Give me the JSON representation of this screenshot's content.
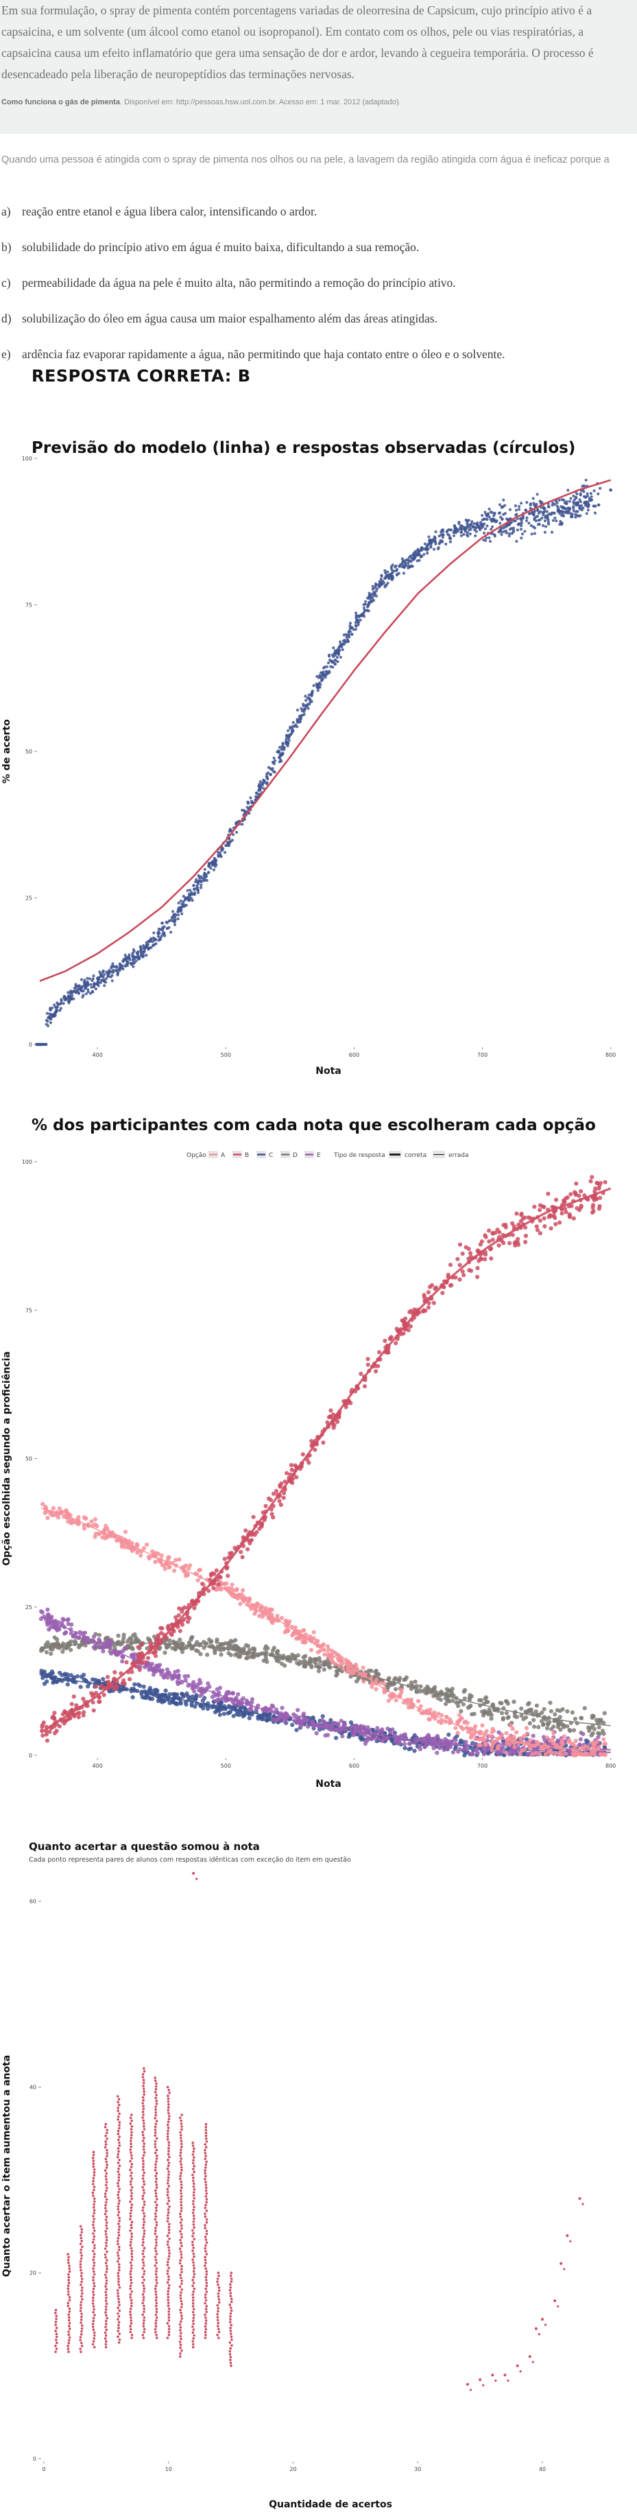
{
  "text": {
    "paragraph": "Em sua formulação, o spray de pimenta contém porcentagens variadas de oleorresina de Capsicum, cujo princípio ativo é a capsaicina, e um solvente (um álcool como etanol ou isopropanol). Em contato com os olhos, pele ou vias respiratórias, a capsaicina causa um efeito inflamatório que gera uma sensação de dor e ardor, levando à cegueira temporária. O processo é desencadeado pela liberação de neuropeptídios das terminações nervosas.",
    "source_title": "Como funciona o gás de pimenta",
    "source_rest": ". Disponível em: http://pessoas.hsw.uol.com.br. Acesso em: 1 mar. 2012 (adaptado).",
    "question": "Quando uma pessoa é atingida com o spray de pimenta nos olhos ou na pele, a lavagem da região atingida com água é ineficaz porque a",
    "options": [
      {
        "letter": "a)",
        "text": "reação entre etanol e água libera calor, intensificando o ardor."
      },
      {
        "letter": "b)",
        "text": "solubilidade do princípio ativo em água é muito baixa, dificultando a sua remoção."
      },
      {
        "letter": "c)",
        "text": "permeabilidade da água na pele é muito alta, não permitindo a remoção do princípio ativo."
      },
      {
        "letter": "d)",
        "text": "solubilização do óleo em água causa um maior espalhamento além das áreas atingidas."
      },
      {
        "letter": "e)",
        "text": "ardência faz evaporar rapidamente a água, não permitindo que haja contato entre o óleo e o solvente."
      }
    ],
    "answer": "RESPOSTA CORRETA: B"
  },
  "colors": {
    "model_line": "#c94a5a",
    "observed": "#3f5591",
    "A": "#f4909a",
    "B": "#cd4e63",
    "C": "#3e5592",
    "D": "#7f7a76",
    "E": "#9a5fb2",
    "c3_points": "#cd4e63"
  },
  "chart_data": [
    {
      "type": "scatter",
      "title": "Previsão do modelo (linha) e respostas observadas (círculos)",
      "xlabel": "Nota",
      "ylabel": "% de acerto",
      "xlim": [
        355,
        805
      ],
      "ylim": [
        0,
        100
      ],
      "x_ticks": [
        400,
        500,
        600,
        700,
        800
      ],
      "y_ticks": [
        0,
        25,
        50,
        75,
        100
      ],
      "series": [
        {
          "kind": "line",
          "x": [
            330,
            350,
            375,
            400,
            425,
            450,
            475,
            500,
            525,
            550,
            575,
            600,
            625,
            650,
            675,
            700,
            725,
            750,
            775,
            800
          ],
          "y": [
            8.7,
            10.4,
            12.5,
            15.5,
            19.2,
            23.4,
            28.7,
            34.8,
            41.8,
            49.0,
            56.5,
            63.8,
            70.6,
            77.0,
            82.0,
            86.5,
            89.8,
            92.4,
            94.6,
            96.3
          ]
        },
        {
          "kind": "points",
          "x": [
            330,
            340,
            345,
            350,
            355,
            360,
            370,
            380,
            390,
            400,
            420,
            440,
            460,
            480,
            500,
            520,
            540,
            560,
            580,
            600,
            620,
            640,
            660,
            680,
            700,
            720,
            740,
            760,
            780,
            800
          ],
          "y": [
            0,
            0,
            0,
            0,
            2.2,
            4.3,
            6.4,
            8.6,
            9.8,
            10.8,
            13.5,
            16.7,
            21.5,
            27.8,
            34.0,
            41.0,
            48.5,
            57.0,
            64.5,
            71.5,
            78.5,
            82.0,
            85.5,
            87.8,
            88.7,
            89.5,
            90.4,
            91.0,
            92.5,
            94.6
          ]
        }
      ]
    },
    {
      "type": "scatter",
      "title": "% dos participantes com cada nota que escolheram cada opção",
      "xlabel": "Nota",
      "ylabel": "Opção escolhida segundo a proficiência",
      "xlim": [
        355,
        805
      ],
      "ylim": [
        0,
        100
      ],
      "x_ticks": [
        400,
        500,
        600,
        700,
        800
      ],
      "y_ticks": [
        0,
        25,
        50,
        75,
        100
      ],
      "legend": {
        "placement": "top",
        "option_title": "Opção",
        "options": [
          "A",
          "B",
          "C",
          "D",
          "E"
        ],
        "type_title": "Tipo de resposta",
        "types": [
          "correta",
          "errada"
        ]
      },
      "series": [
        {
          "name": "A",
          "x": [
            330,
            350,
            375,
            400,
            425,
            450,
            475,
            500,
            525,
            550,
            575,
            600,
            625,
            650,
            675,
            700,
            725,
            750,
            775,
            800
          ],
          "y": [
            42.8,
            42.0,
            40.5,
            38.0,
            35.5,
            33.0,
            30.5,
            28.0,
            25.0,
            21.5,
            18.0,
            14.5,
            11.0,
            8.0,
            5.5,
            3.5,
            2.3,
            1.5,
            1.0,
            0.8
          ]
        },
        {
          "name": "B",
          "x": [
            330,
            350,
            375,
            400,
            425,
            450,
            475,
            500,
            525,
            550,
            575,
            600,
            625,
            650,
            675,
            700,
            725,
            750,
            775,
            800
          ],
          "y": [
            0.5,
            3.0,
            6.5,
            10.0,
            14.5,
            19.5,
            25.5,
            32.0,
            39.0,
            46.5,
            54.0,
            61.5,
            68.5,
            75.0,
            80.5,
            85.0,
            88.5,
            91.5,
            93.5,
            95.5
          ]
        },
        {
          "name": "C",
          "x": [
            330,
            350,
            375,
            400,
            425,
            450,
            475,
            500,
            525,
            550,
            575,
            600,
            625,
            650,
            675,
            700,
            725,
            750,
            775,
            800
          ],
          "y": [
            14.0,
            13.5,
            12.8,
            12.0,
            11.0,
            10.0,
            9.0,
            8.0,
            7.0,
            6.0,
            5.0,
            4.0,
            3.0,
            2.3,
            1.8,
            1.3,
            1.0,
            0.8,
            0.6,
            0.5
          ]
        },
        {
          "name": "D",
          "x": [
            330,
            350,
            375,
            400,
            425,
            450,
            475,
            500,
            525,
            550,
            575,
            600,
            625,
            650,
            675,
            700,
            725,
            750,
            775,
            800
          ],
          "y": [
            17.5,
            18.0,
            18.5,
            19.0,
            19.0,
            18.8,
            18.5,
            18.0,
            17.2,
            16.3,
            15.3,
            14.0,
            12.7,
            11.2,
            9.8,
            8.5,
            7.3,
            6.3,
            5.5,
            5.0
          ]
        },
        {
          "name": "E",
          "x": [
            330,
            350,
            375,
            400,
            425,
            450,
            475,
            500,
            525,
            550,
            575,
            600,
            625,
            650,
            675,
            700,
            725,
            750,
            775,
            800
          ],
          "y": [
            26.0,
            24.0,
            21.5,
            19.0,
            16.5,
            14.0,
            11.8,
            9.8,
            8.0,
            6.5,
            5.0,
            4.0,
            3.2,
            2.5,
            2.0,
            1.6,
            1.3,
            1.1,
            1.0,
            1.0
          ]
        }
      ]
    },
    {
      "type": "scatter",
      "title": "Quanto acertar a questão somou à nota",
      "subtitle": "Cada ponto representa pares de alunos com respostas idênticas com exceção do item em questão",
      "xlabel": "Quantidade de acertos",
      "ylabel": "Quanto acertar o item aumentou a anota",
      "xlim": [
        0,
        46
      ],
      "ylim": [
        0,
        63
      ],
      "x_ticks": [
        0,
        10,
        20,
        30,
        40
      ],
      "y_ticks": [
        0,
        20,
        40,
        60
      ],
      "series": [
        {
          "name": "pontos",
          "columns": [
            {
              "x": 1,
              "min": 11.5,
              "max": 16
            },
            {
              "x": 2,
              "min": 11.5,
              "max": 22
            },
            {
              "x": 3,
              "min": 11.5,
              "max": 25
            },
            {
              "x": 4,
              "min": 12,
              "max": 33
            },
            {
              "x": 5,
              "min": 12,
              "max": 36
            },
            {
              "x": 6,
              "min": 12.5,
              "max": 39
            },
            {
              "x": 7,
              "min": 13,
              "max": 37
            },
            {
              "x": 8,
              "min": 13,
              "max": 42
            },
            {
              "x": 9,
              "min": 13,
              "max": 41
            },
            {
              "x": 10,
              "min": 13,
              "max": 40
            },
            {
              "x": 11,
              "min": 11,
              "max": 37
            },
            {
              "x": 12,
              "min": 12,
              "max": 34
            },
            {
              "x": 13,
              "min": 13,
              "max": 36
            },
            {
              "x": 14,
              "min": 13,
              "max": 20
            },
            {
              "x": 15,
              "min": 10,
              "max": 20
            }
          ],
          "isolated": [
            {
              "x": 12,
              "y": 63
            },
            {
              "x": 34,
              "y": 8
            },
            {
              "x": 35,
              "y": 8.5
            },
            {
              "x": 36,
              "y": 9
            },
            {
              "x": 37,
              "y": 9
            },
            {
              "x": 38,
              "y": 10
            },
            {
              "x": 39,
              "y": 11
            },
            {
              "x": 39.5,
              "y": 14
            },
            {
              "x": 40,
              "y": 15
            },
            {
              "x": 41,
              "y": 17
            },
            {
              "x": 41.5,
              "y": 21
            },
            {
              "x": 42,
              "y": 24
            },
            {
              "x": 43,
              "y": 28
            }
          ]
        }
      ]
    }
  ]
}
